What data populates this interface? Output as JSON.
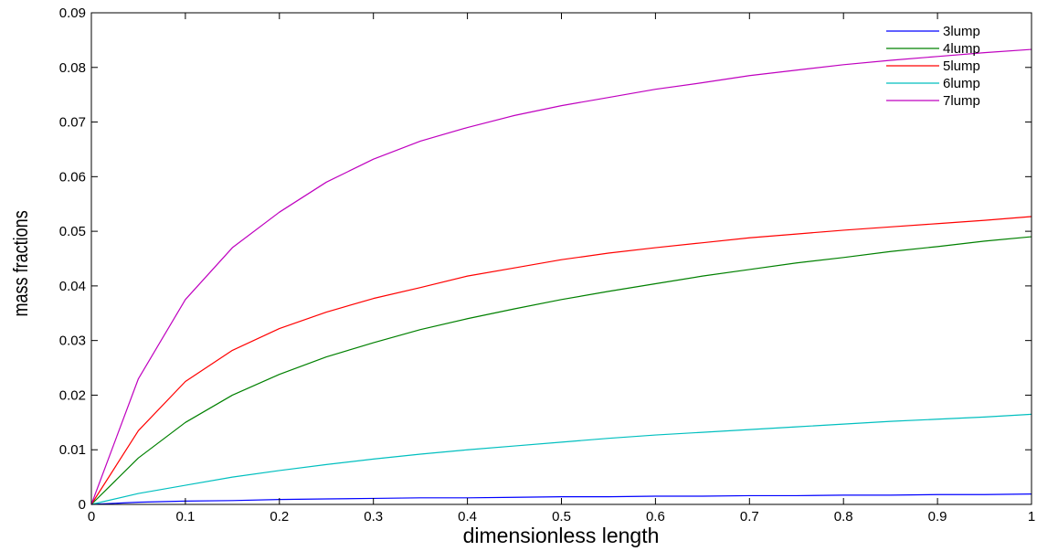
{
  "chart_data": {
    "type": "line",
    "title": "",
    "xlabel": "dimensionless length",
    "ylabel": "mass fractions",
    "xlim": [
      0,
      1
    ],
    "ylim": [
      0,
      0.09
    ],
    "x_ticks": [
      "0",
      "0.1",
      "0.2",
      "0.3",
      "0.4",
      "0.5",
      "0.6",
      "0.7",
      "0.8",
      "0.9",
      "1"
    ],
    "y_ticks": [
      "0",
      "0.01",
      "0.02",
      "0.03",
      "0.04",
      "0.05",
      "0.06",
      "0.07",
      "0.08",
      "0.09"
    ],
    "grid": false,
    "legend_position": "top-right",
    "x": [
      0,
      0.05,
      0.1,
      0.15,
      0.2,
      0.25,
      0.3,
      0.35,
      0.4,
      0.45,
      0.5,
      0.55,
      0.6,
      0.65,
      0.7,
      0.75,
      0.8,
      0.85,
      0.9,
      0.95,
      1.0
    ],
    "series": [
      {
        "name": "3lump",
        "color": "#0000ff",
        "values": [
          0,
          0.0004,
          0.0006,
          0.0007,
          0.0009,
          0.001,
          0.0011,
          0.0012,
          0.0012,
          0.0013,
          0.0014,
          0.0014,
          0.0015,
          0.0015,
          0.0016,
          0.0016,
          0.0017,
          0.0017,
          0.0018,
          0.0018,
          0.0019
        ]
      },
      {
        "name": "4lump",
        "color": "#008000",
        "values": [
          0,
          0.0085,
          0.015,
          0.02,
          0.0238,
          0.027,
          0.0296,
          0.032,
          0.034,
          0.0358,
          0.0375,
          0.039,
          0.0404,
          0.0418,
          0.043,
          0.0442,
          0.0452,
          0.0463,
          0.0472,
          0.0482,
          0.049
        ]
      },
      {
        "name": "5lump",
        "color": "#ff0000",
        "values": [
          0,
          0.0135,
          0.0225,
          0.0282,
          0.0322,
          0.0352,
          0.0377,
          0.0397,
          0.0418,
          0.0433,
          0.0448,
          0.046,
          0.047,
          0.0479,
          0.0488,
          0.0495,
          0.0502,
          0.0508,
          0.0514,
          0.052,
          0.0527
        ]
      },
      {
        "name": "6lump",
        "color": "#00bfbf",
        "values": [
          0,
          0.002,
          0.0035,
          0.005,
          0.0062,
          0.0073,
          0.0083,
          0.0092,
          0.01,
          0.0107,
          0.0114,
          0.0121,
          0.0127,
          0.0132,
          0.0137,
          0.0142,
          0.0147,
          0.0152,
          0.0156,
          0.016,
          0.0165
        ]
      },
      {
        "name": "7lump",
        "color": "#bf00bf",
        "values": [
          0,
          0.023,
          0.0375,
          0.047,
          0.0535,
          0.059,
          0.0632,
          0.0665,
          0.069,
          0.0712,
          0.073,
          0.0745,
          0.076,
          0.0772,
          0.0785,
          0.0795,
          0.0805,
          0.0813,
          0.082,
          0.0827,
          0.0833
        ]
      }
    ]
  }
}
